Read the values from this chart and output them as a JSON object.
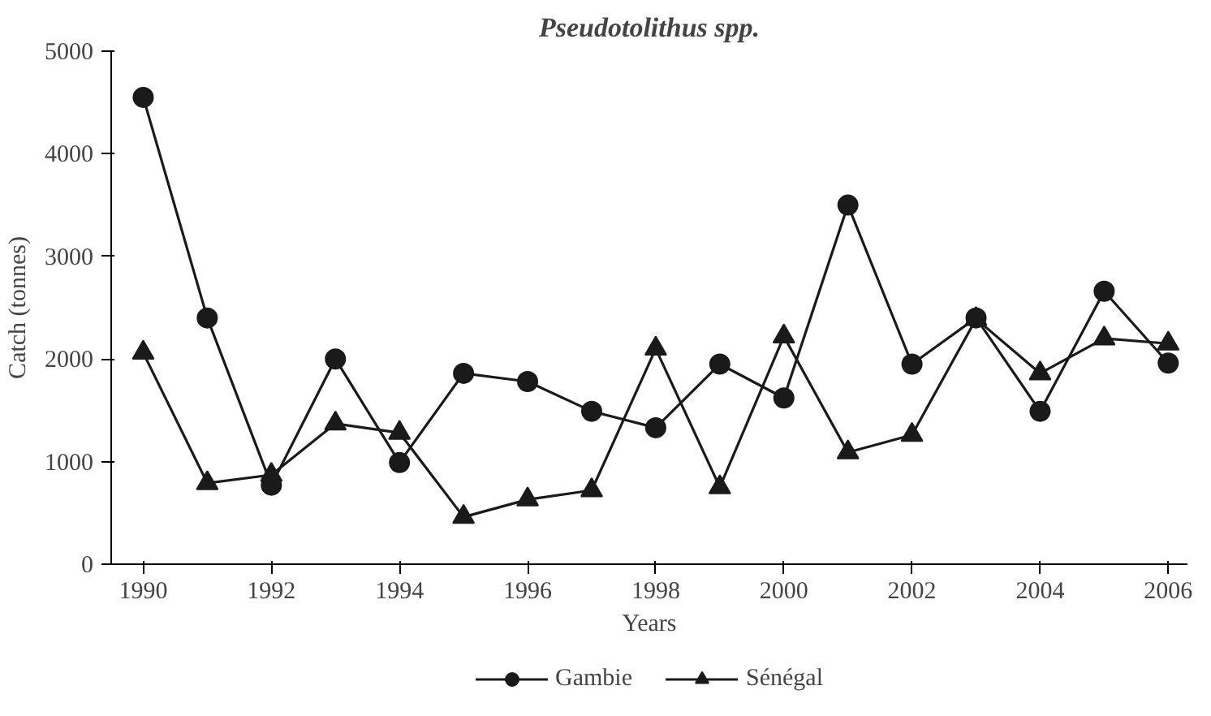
{
  "chart_data": {
    "type": "line",
    "title": "Pseudotolithus spp.",
    "xlabel": "Years",
    "ylabel": "Catch (tonnes)",
    "x": [
      1990,
      1991,
      1992,
      1993,
      1994,
      1995,
      1996,
      1997,
      1998,
      1999,
      2000,
      2001,
      2002,
      2003,
      2004,
      2005,
      2006
    ],
    "series": [
      {
        "name": "Gambie",
        "color": "#1a1a1a",
        "marker": "circle",
        "values": [
          4550,
          2400,
          770,
          2000,
          990,
          1860,
          1780,
          1490,
          1330,
          1950,
          1620,
          3500,
          1950,
          2400,
          1490,
          2660,
          1960
        ]
      },
      {
        "name": "Sénégal",
        "color": "#1a1a1a",
        "marker": "triangle",
        "values": [
          2060,
          790,
          870,
          1370,
          1280,
          460,
          630,
          720,
          2100,
          750,
          2220,
          1090,
          1260,
          2390,
          1860,
          2200,
          2150
        ]
      }
    ],
    "xlim": [
      1989.5,
      2006.3
    ],
    "xticks": [
      1990,
      1992,
      1994,
      1996,
      1998,
      2000,
      2002,
      2004,
      2006
    ],
    "ylim": [
      0,
      5000
    ],
    "yticks": [
      0,
      1000,
      2000,
      3000,
      4000,
      5000
    ],
    "grid": false,
    "legend": "bottom",
    "line_style": "solid"
  }
}
